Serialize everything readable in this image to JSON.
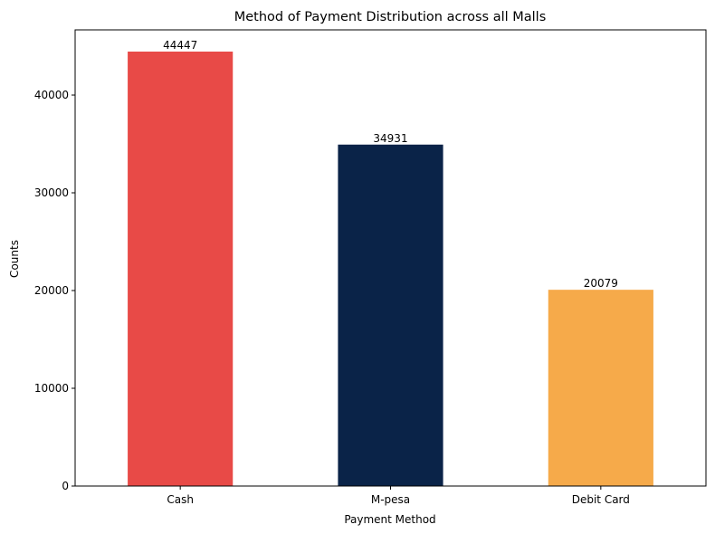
{
  "chart_data": {
    "type": "bar",
    "title": "Method of Payment Distribution across all Malls",
    "xlabel": "Payment Method",
    "ylabel": "Counts",
    "categories": [
      "Cash",
      "M-pesa",
      "Debit Card"
    ],
    "values": [
      44447,
      34931,
      20079
    ],
    "data_labels": [
      "44447",
      "34931",
      "20079"
    ],
    "colors": [
      "#e84a47",
      "#0a2348",
      "#f6aa4a"
    ],
    "ylim": [
      0,
      46669
    ],
    "yticks": [
      0,
      10000,
      20000,
      30000,
      40000
    ],
    "ytick_labels": [
      "0",
      "10000",
      "20000",
      "30000",
      "40000"
    ],
    "grid": false,
    "legend": "none"
  }
}
